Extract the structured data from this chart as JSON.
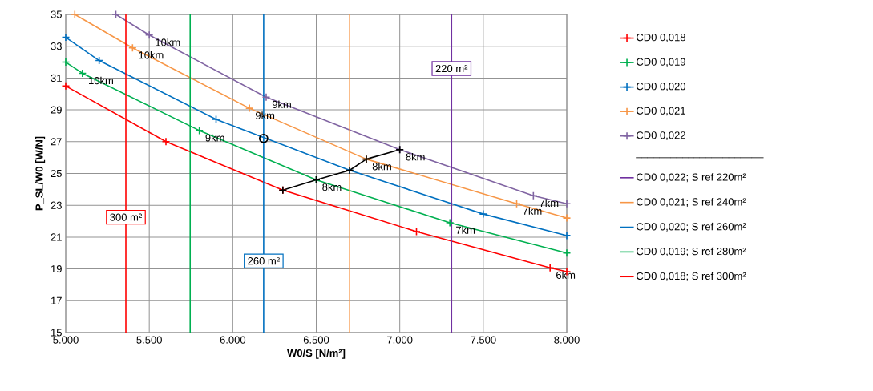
{
  "chart_data": {
    "type": "line",
    "xlabel": "W0/S [N/m²]",
    "ylabel": "P_SL/W0 [W/N]",
    "xlim": [
      5000,
      8000
    ],
    "ylim": [
      15,
      35
    ],
    "xticks": [
      {
        "value": 5000,
        "label": "5.000"
      },
      {
        "value": 5500,
        "label": "5.500"
      },
      {
        "value": 6000,
        "label": "6.000"
      },
      {
        "value": 6500,
        "label": "6.500"
      },
      {
        "value": 7000,
        "label": "7.000"
      },
      {
        "value": 7500,
        "label": "7.500"
      },
      {
        "value": 8000,
        "label": "8.000"
      }
    ],
    "yticks": [
      15,
      17,
      19,
      21,
      23,
      25,
      27,
      29,
      31,
      33,
      35
    ],
    "grid": true,
    "legend": "right",
    "line_style": "solid",
    "series": [
      {
        "name": "CD0 0,018",
        "color": "#ff0000",
        "marker": "cross",
        "x": [
          5000,
          5600,
          6300,
          7100,
          7900,
          8000
        ],
        "values": [
          30.5,
          27.0,
          23.95,
          21.35,
          19.07,
          18.83
        ]
      },
      {
        "name": "CD0 0,019",
        "color": "#00b050",
        "marker": "cross",
        "x": [
          5000,
          5100,
          5800,
          6500,
          7300,
          8000
        ],
        "values": [
          32.0,
          31.3,
          27.7,
          24.6,
          21.9,
          20.0
        ]
      },
      {
        "name": "CD0 0,020",
        "color": "#0070c0",
        "marker": "cross",
        "x": [
          5000,
          5200,
          5900,
          6700,
          7500,
          8000
        ],
        "values": [
          33.56,
          32.1,
          28.4,
          25.2,
          22.45,
          21.1
        ]
      },
      {
        "name": "CD0 0,021",
        "color": "#f79646",
        "marker": "cross",
        "x": [
          5054,
          5400,
          6100,
          6800,
          7700,
          8000
        ],
        "values": [
          35.0,
          32.9,
          29.1,
          25.9,
          23.1,
          22.2
        ]
      },
      {
        "name": "CD0 0,022",
        "color": "#8064a2",
        "marker": "cross",
        "x": [
          5300,
          5500,
          6200,
          7000,
          7800,
          8000
        ],
        "values": [
          35.0,
          33.7,
          29.8,
          26.5,
          23.6,
          23.1
        ]
      },
      {
        "name": "CD0 0,022; S ref 220m²",
        "color": "#7030a0",
        "marker": "none",
        "x": [
          7310,
          7310
        ],
        "values": [
          15,
          35
        ]
      },
      {
        "name": "CD0 0,021; S ref 240m²",
        "color": "#f79646",
        "marker": "none",
        "x": [
          6700,
          6700
        ],
        "values": [
          15,
          35
        ]
      },
      {
        "name": "CD0 0,020; S ref 260m²",
        "color": "#0070c0",
        "marker": "none",
        "x": [
          6185,
          6185
        ],
        "values": [
          15,
          35
        ]
      },
      {
        "name": "CD0 0,019; S ref 280m²",
        "color": "#00b050",
        "marker": "none",
        "x": [
          5745,
          5745
        ],
        "values": [
          15,
          35
        ]
      },
      {
        "name": "CD0 0,018; S ref 300m²",
        "color": "#ff0000",
        "marker": "none",
        "x": [
          5360,
          5360
        ],
        "values": [
          15,
          35
        ]
      },
      {
        "color": "#000000",
        "marker": "cross",
        "x": [
          6300,
          6500,
          6700,
          6800,
          7000
        ],
        "values": [
          23.95,
          24.6,
          25.2,
          25.9,
          26.5
        ]
      },
      {
        "type": "scatter",
        "color": "#000000",
        "marker": "circle",
        "x": [
          6185
        ],
        "values": [
          27.2
        ]
      }
    ],
    "annotations": [
      "______________________",
      {
        "text": "220 m²",
        "x": 7310,
        "y": 31.6
      },
      {
        "text": "300 m²",
        "x": 5360,
        "y": 22.25
      },
      {
        "text": "260 m²",
        "x": 6185,
        "y": 19.5
      },
      {
        "text": "10km",
        "x": 5500,
        "y": 33.7
      },
      {
        "text": "10km",
        "x": 5400,
        "y": 32.9
      },
      {
        "text": "10km",
        "x": 5100,
        "y": 31.3
      },
      {
        "text": "9km",
        "x": 6200,
        "y": 29.8
      },
      {
        "text": "9km",
        "x": 6100,
        "y": 29.1
      },
      {
        "text": "9km",
        "x": 5800,
        "y": 27.7
      },
      {
        "text": "8km",
        "x": 7000,
        "y": 26.5
      },
      {
        "text": "8km",
        "x": 6800,
        "y": 25.9
      },
      {
        "text": "8km",
        "x": 6500,
        "y": 24.6
      },
      {
        "text": "7km",
        "x": 7800,
        "y": 23.6
      },
      {
        "text": "7km",
        "x": 7700,
        "y": 23.1
      },
      {
        "text": "7km",
        "x": 7300,
        "y": 21.9
      },
      {
        "text": "6km",
        "x": 7900,
        "y": 19.07
      }
    ]
  }
}
